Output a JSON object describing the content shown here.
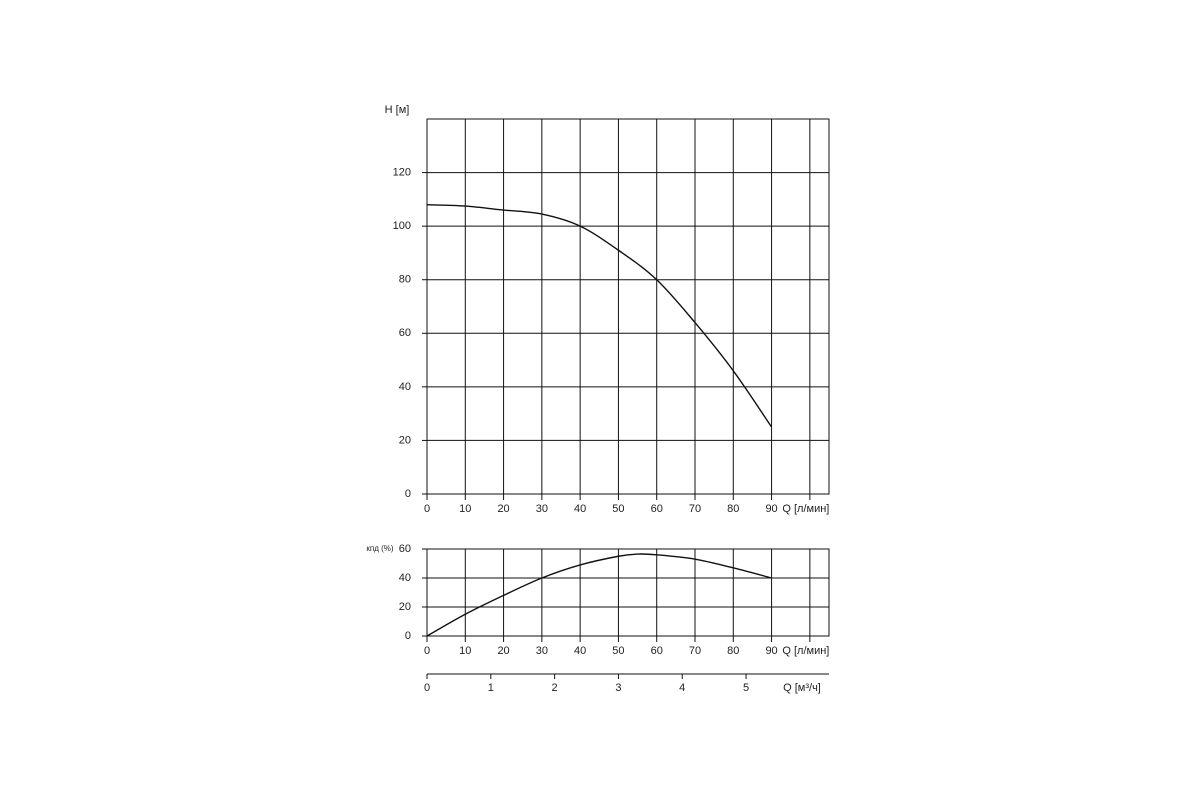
{
  "chart_data": [
    {
      "type": "line",
      "ylabel": "H [м]",
      "x": [
        0,
        10,
        20,
        30,
        40,
        50,
        60,
        70,
        80,
        90
      ],
      "values": [
        108,
        107.5,
        106,
        104.5,
        100,
        91,
        80,
        64,
        46,
        25
      ],
      "color": "#111111",
      "xlim": [
        0,
        105
      ],
      "xticks": [
        0,
        10,
        20,
        30,
        40,
        50,
        60,
        70,
        80,
        90,
        {
          "value": 100,
          "label": "Q [л/мин]"
        }
      ],
      "ylim": [
        0,
        140
      ],
      "yticks": [
        0,
        20,
        40,
        60,
        80,
        100,
        120
      ],
      "grid": true
    },
    {
      "type": "line",
      "ylabel": "кпд (%)",
      "x": [
        0,
        10,
        20,
        30,
        40,
        50,
        55,
        60,
        70,
        80,
        90
      ],
      "values": [
        0,
        15,
        28,
        40,
        49,
        55,
        56.5,
        56,
        53,
        47,
        40
      ],
      "color": "#111111",
      "xlim": [
        0,
        105
      ],
      "xticks": [
        0,
        10,
        20,
        30,
        40,
        50,
        60,
        70,
        80,
        90,
        {
          "value": 100,
          "label": "Q [л/мин]"
        }
      ],
      "ylim": [
        0,
        60
      ],
      "yticks": [
        0,
        20,
        40,
        60
      ],
      "grid": true,
      "x2lim": [
        0,
        6.3
      ],
      "x2ticks": [
        0,
        1,
        2,
        3,
        4,
        5
      ],
      "x2label": "Q [м³/ч]"
    }
  ]
}
